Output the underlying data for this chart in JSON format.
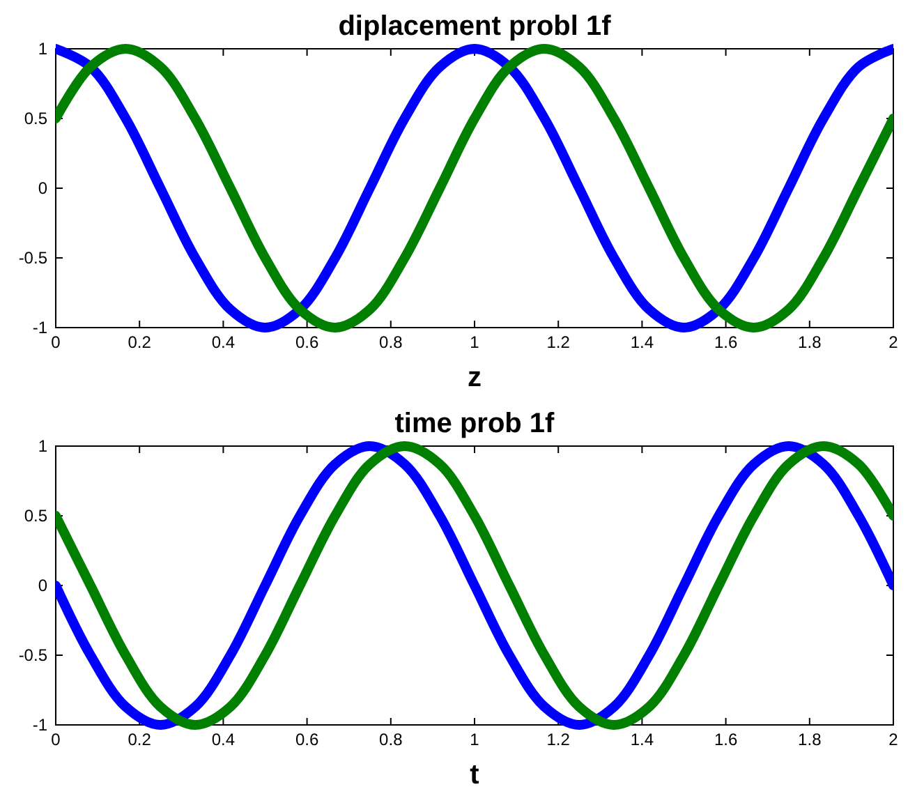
{
  "chart_data": [
    {
      "type": "line",
      "title": "diplacement probl 1f",
      "xlabel": "z",
      "xlim": [
        0,
        2
      ],
      "xticks": [
        0,
        0.2,
        0.4,
        0.6,
        0.8,
        1,
        1.2,
        1.4,
        1.6,
        1.8,
        2
      ],
      "ylim": [
        -1,
        1
      ],
      "yticks": [
        -1,
        -0.5,
        0,
        0.5,
        1
      ],
      "x": [
        0,
        0.083,
        0.167,
        0.25,
        0.333,
        0.417,
        0.5,
        0.583,
        0.667,
        0.75,
        0.833,
        0.917,
        1,
        1.083,
        1.167,
        1.25,
        1.333,
        1.417,
        1.5,
        1.583,
        1.667,
        1.75,
        1.833,
        1.917,
        2
      ],
      "series": [
        {
          "color": "#0000ff",
          "values": [
            1,
            0.87,
            0.5,
            0,
            -0.5,
            -0.87,
            -1,
            -0.87,
            -0.5,
            0,
            0.5,
            0.87,
            1,
            0.87,
            0.5,
            0,
            -0.5,
            -0.87,
            -1,
            -0.87,
            -0.5,
            0,
            0.5,
            0.87,
            1
          ]
        },
        {
          "color": "#007f00",
          "values": [
            0.5,
            0.87,
            1,
            0.87,
            0.5,
            0,
            -0.5,
            -0.87,
            -1,
            -0.87,
            -0.5,
            0,
            0.5,
            0.87,
            1,
            0.87,
            0.5,
            0,
            -0.5,
            -0.87,
            -1,
            -0.87,
            -0.5,
            0,
            0.5
          ]
        }
      ]
    },
    {
      "type": "line",
      "title": "time prob 1f",
      "xlabel": "t",
      "xlim": [
        0,
        2
      ],
      "xticks": [
        0,
        0.2,
        0.4,
        0.6,
        0.8,
        1,
        1.2,
        1.4,
        1.6,
        1.8,
        2
      ],
      "ylim": [
        -1,
        1
      ],
      "yticks": [
        -1,
        -0.5,
        0,
        0.5,
        1
      ],
      "x": [
        0,
        0.083,
        0.167,
        0.25,
        0.333,
        0.417,
        0.5,
        0.583,
        0.667,
        0.75,
        0.833,
        0.917,
        1,
        1.083,
        1.167,
        1.25,
        1.333,
        1.417,
        1.5,
        1.583,
        1.667,
        1.75,
        1.833,
        1.917,
        2
      ],
      "series": [
        {
          "color": "#0000ff",
          "values": [
            0,
            -0.5,
            -0.87,
            -1,
            -0.87,
            -0.5,
            0,
            0.5,
            0.87,
            1,
            0.87,
            0.5,
            0,
            -0.5,
            -0.87,
            -1,
            -0.87,
            -0.5,
            0,
            0.5,
            0.87,
            1,
            0.87,
            0.5,
            0
          ]
        },
        {
          "color": "#007f00",
          "values": [
            0.5,
            0,
            -0.5,
            -0.87,
            -1,
            -0.87,
            -0.5,
            0,
            0.5,
            0.87,
            1,
            0.87,
            0.5,
            0,
            -0.5,
            -0.87,
            -1,
            -0.87,
            -0.5,
            0,
            0.5,
            0.87,
            1,
            0.87,
            0.5
          ]
        }
      ]
    }
  ]
}
